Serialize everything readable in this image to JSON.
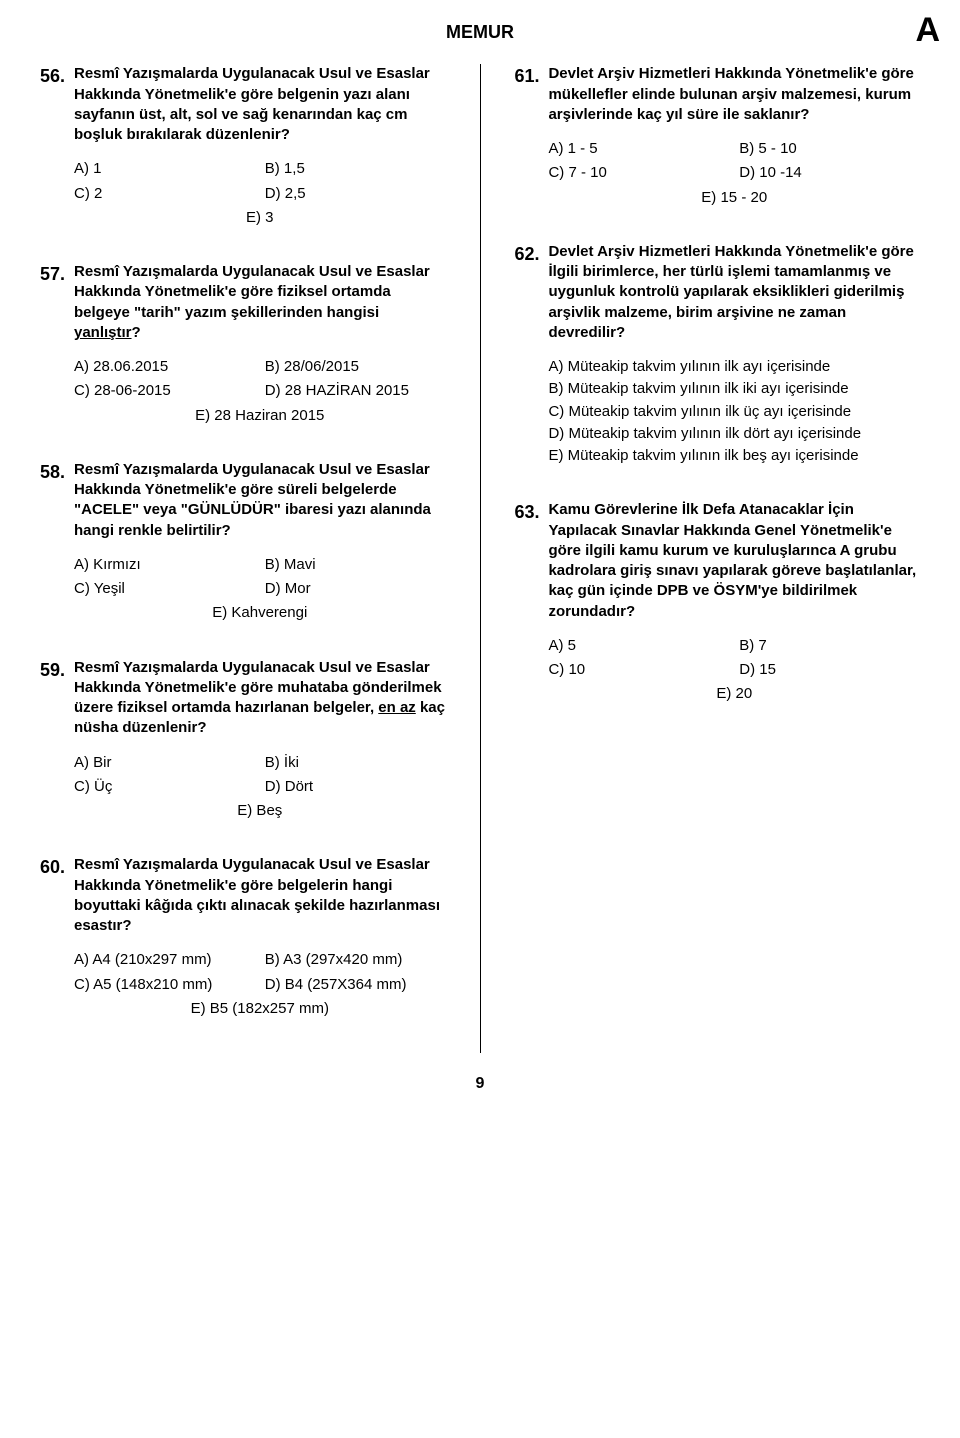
{
  "header": {
    "title": "MEMUR",
    "letter": "A"
  },
  "page_number": "9",
  "left": [
    {
      "num": "56.",
      "text": "Resmî Yazışmalarda Uygulanacak Usul ve Esaslar Hakkında Yönetmelik'e göre belgenin yazı alanı sayfanın üst, alt, sol ve sağ kenarından kaç cm boşluk bırakılarak düzenlenir?",
      "opts": {
        "A": "A) 1",
        "B": "B) 1,5",
        "C": "C) 2",
        "D": "D) 2,5",
        "E": "E) 3"
      },
      "layout": "grid"
    },
    {
      "num": "57.",
      "text_html": "Resmî Yazışmalarda Uygulanacak Usul ve Esaslar Hakkında Yönetmelik'e göre fiziksel ortamda belgeye \"tarih\" yazım şekillerinden hangisi <span class=\"underline\">yanlıştır</span>?",
      "opts": {
        "A": "A) 28.06.2015",
        "B": "B) 28/06/2015",
        "C": "C) 28-06-2015",
        "D": "D) 28 HAZİRAN 2015",
        "E": "E) 28 Haziran 2015"
      },
      "layout": "grid"
    },
    {
      "num": "58.",
      "text": "Resmî Yazışmalarda Uygulanacak Usul ve Esaslar Hakkında Yönetmelik'e göre süreli belgelerde \"ACELE\" veya \"GÜNLÜDÜR\" ibaresi yazı alanında hangi renkle belirtilir?",
      "opts": {
        "A": "A) Kırmızı",
        "B": "B) Mavi",
        "C": "C) Yeşil",
        "D": "D) Mor",
        "E": "E) Kahverengi"
      },
      "layout": "grid"
    },
    {
      "num": "59.",
      "text_html": "Resmî Yazışmalarda Uygulanacak Usul ve Esaslar Hakkında Yönetmelik'e göre muhataba gönderilmek üzere fiziksel ortamda hazırlanan belgeler, <span class=\"underline\">en az</span> kaç nüsha düzenlenir?",
      "opts": {
        "A": "A) Bir",
        "B": "B) İki",
        "C": "C) Üç",
        "D": "D) Dört",
        "E": "E) Beş"
      },
      "layout": "grid"
    },
    {
      "num": "60.",
      "text": "Resmî Yazışmalarda Uygulanacak Usul ve Esaslar Hakkında Yönetmelik'e göre belgelerin hangi boyuttaki kâğıda çıktı alınacak şekilde hazırlanması esastır?",
      "opts": {
        "A": "A) A4 (210x297 mm)",
        "B": "B) A3 (297x420 mm)",
        "C": "C) A5 (148x210 mm)",
        "D": "D) B4 (257X364 mm)",
        "E": "E) B5 (182x257 mm)"
      },
      "layout": "grid"
    }
  ],
  "right": [
    {
      "num": "61.",
      "text": "Devlet Arşiv Hizmetleri Hakkında Yönetmelik'e göre mükellefler elinde bulunan arşiv malzemesi, kurum arşivlerinde kaç yıl süre ile saklanır?",
      "opts": {
        "A": "A) 1 - 5",
        "B": "B) 5 - 10",
        "C": "C) 7 - 10",
        "D": "D) 10 -14",
        "E": "E) 15 - 20"
      },
      "layout": "grid"
    },
    {
      "num": "62.",
      "text": "Devlet Arşiv Hizmetleri Hakkında Yönetmelik'e göre İlgili birimlerce, her türlü işlemi tamamlanmış ve uygunluk kontrolü yapılarak eksiklikleri giderilmiş arşivlik malzeme, birim arşivine ne zaman devredilir?",
      "opts_list": [
        "A) Müteakip takvim yılının ilk ayı içerisinde",
        "B) Müteakip takvim yılının ilk iki ayı içerisinde",
        "C) Müteakip takvim yılının ilk üç ayı içerisinde",
        "D) Müteakip takvim yılının ilk dört ayı içerisinde",
        "E) Müteakip takvim yılının ilk beş ayı içerisinde"
      ],
      "layout": "list"
    },
    {
      "num": "63.",
      "text": "Kamu Görevlerine İlk Defa Atanacaklar İçin Yapılacak Sınavlar Hakkında Genel Yönetmelik'e göre ilgili kamu kurum ve kuruluşlarınca A grubu kadrolara giriş sınavı yapılarak göreve başlatılanlar, kaç gün içinde DPB ve ÖSYM'ye bildirilmek zorundadır?",
      "opts": {
        "A": "A) 5",
        "B": "B) 7",
        "C": "C) 10",
        "D": "D) 15",
        "E": "E) 20"
      },
      "layout": "grid"
    }
  ]
}
